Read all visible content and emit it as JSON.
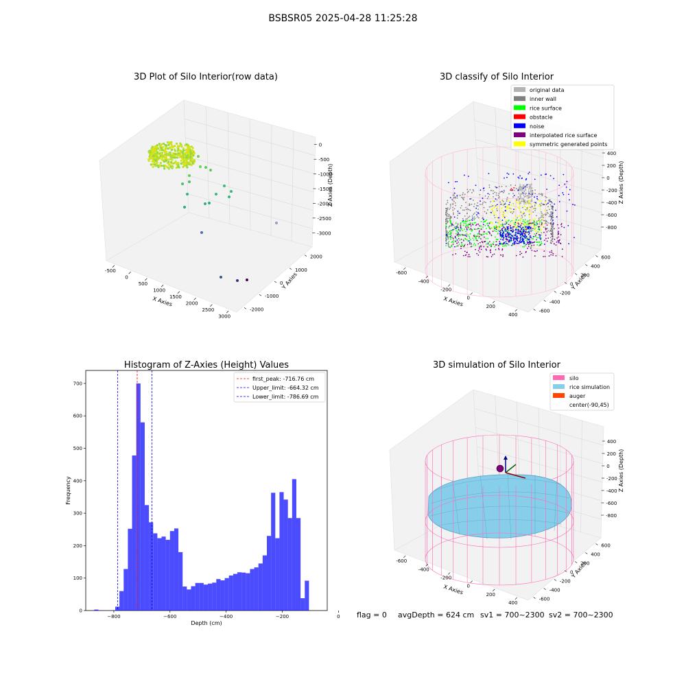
{
  "figure": {
    "suptitle": "BSBSR05 2025-04-28 11:25:28",
    "status": {
      "flag": "flag = 0",
      "avg_depth": "avgDepth = 624 cm",
      "sv1": "sv1 = 700~2300",
      "sv2": "sv2 = 700~2300"
    }
  },
  "chart_data": [
    {
      "id": "raw",
      "type": "scatter3d",
      "title": "3D Plot of Silo Interior(row data)",
      "xlabel": "X Axies",
      "ylabel": "Y Axies",
      "zlabel": "Z Axies (Depth)",
      "x_ticks": [
        "-500",
        "0",
        "500",
        "1000",
        "1500",
        "2000",
        "2500",
        "3000"
      ],
      "y_ticks": [
        "-2000",
        "-1000",
        "0",
        "1000",
        "2000"
      ],
      "z_ticks": [
        "0",
        "-500",
        "-1000",
        "-1500",
        "-2000",
        "-2500",
        "-3000"
      ],
      "colormap": "viridis"
    },
    {
      "id": "classify",
      "type": "scatter3d",
      "title": "3D classify of Silo Interior",
      "xlabel": "X Axies",
      "ylabel": "Y Axies",
      "zlabel": "Z Axies (Depth)",
      "x_ticks": [
        "-600",
        "-400",
        "-200",
        "0",
        "200",
        "400"
      ],
      "y_ticks": [
        "-600",
        "-400",
        "-200",
        "0",
        "200",
        "400",
        "600"
      ],
      "z_ticks": [
        "400",
        "200",
        "0",
        "-200",
        "-400",
        "-600",
        "-800"
      ],
      "legend": [
        {
          "label": "original data",
          "color": "#b3b3b3"
        },
        {
          "label": "inner wall",
          "color": "#808080"
        },
        {
          "label": "rice surface",
          "color": "#00ff00"
        },
        {
          "label": "obstacle",
          "color": "#ff0000"
        },
        {
          "label": "noise",
          "color": "#0000ff"
        },
        {
          "label": "interpolated rice surface",
          "color": "#800080"
        },
        {
          "label": "symmetric generated points",
          "color": "#ffff00"
        }
      ]
    },
    {
      "id": "hist",
      "type": "bar",
      "title": "Histogram of Z-Axies (Height) Values",
      "xlabel": "Depth (cm)",
      "ylabel": "Frequency",
      "xlim": [
        -900,
        -40
      ],
      "ylim": [
        0,
        740
      ],
      "x_ticks": [
        -800,
        -600,
        -400,
        -200,
        0
      ],
      "y_ticks": [
        0,
        100,
        200,
        300,
        400,
        500,
        600,
        700
      ],
      "bar_color": "#0000ff",
      "bins": [
        [
          -870,
          -855,
          3
        ],
        [
          -855,
          -840,
          1
        ],
        [
          -840,
          -825,
          0
        ],
        [
          -825,
          -810,
          0
        ],
        [
          -810,
          -795,
          1
        ],
        [
          -795,
          -780,
          12
        ],
        [
          -780,
          -765,
          60
        ],
        [
          -765,
          -750,
          128
        ],
        [
          -750,
          -735,
          252
        ],
        [
          -735,
          -720,
          478
        ],
        [
          -720,
          -705,
          700
        ],
        [
          -705,
          -690,
          580
        ],
        [
          -690,
          -675,
          325
        ],
        [
          -675,
          -660,
          272
        ],
        [
          -660,
          -645,
          238
        ],
        [
          -645,
          -630,
          223
        ],
        [
          -630,
          -615,
          228
        ],
        [
          -615,
          -600,
          218
        ],
        [
          -600,
          -585,
          245
        ],
        [
          -585,
          -570,
          253
        ],
        [
          -570,
          -555,
          180
        ],
        [
          -555,
          -540,
          74
        ],
        [
          -540,
          -525,
          65
        ],
        [
          -525,
          -510,
          75
        ],
        [
          -510,
          -495,
          85
        ],
        [
          -495,
          -480,
          85
        ],
        [
          -480,
          -465,
          80
        ],
        [
          -465,
          -450,
          83
        ],
        [
          -450,
          -435,
          86
        ],
        [
          -435,
          -420,
          97
        ],
        [
          -420,
          -405,
          93
        ],
        [
          -405,
          -390,
          100
        ],
        [
          -390,
          -375,
          108
        ],
        [
          -375,
          -360,
          113
        ],
        [
          -360,
          -345,
          118
        ],
        [
          -345,
          -330,
          117
        ],
        [
          -330,
          -315,
          115
        ],
        [
          -315,
          -300,
          128
        ],
        [
          -300,
          -285,
          133
        ],
        [
          -285,
          -270,
          145
        ],
        [
          -270,
          -255,
          170
        ],
        [
          -255,
          -240,
          230
        ],
        [
          -240,
          -225,
          363
        ],
        [
          -225,
          -210,
          223
        ],
        [
          -210,
          -195,
          365
        ],
        [
          -195,
          -180,
          342
        ],
        [
          -180,
          -165,
          285
        ],
        [
          -165,
          -150,
          405
        ],
        [
          -150,
          -135,
          285
        ],
        [
          -135,
          -120,
          38
        ],
        [
          -120,
          -105,
          92
        ]
      ],
      "lines": [
        {
          "label": "first_peak: -716.76 cm",
          "x": -716.76,
          "color": "#ff0000"
        },
        {
          "label": "Upper_limit: -664.32 cm",
          "x": -664.32,
          "color": "#0000ff"
        },
        {
          "label": "Lower_limit: -786.69 cm",
          "x": -786.69,
          "color": "#0000ff"
        }
      ]
    },
    {
      "id": "sim",
      "type": "surface3d",
      "title": "3D simulation of Silo Interior",
      "xlabel": "X Axies",
      "ylabel": "Y Axies",
      "zlabel": "Z Axies (Depth)",
      "x_ticks": [
        "-600",
        "-400",
        "-200",
        "0",
        "200",
        "400"
      ],
      "y_ticks": [
        "-600",
        "-400",
        "-200",
        "0",
        "200",
        "400",
        "600"
      ],
      "z_ticks": [
        "400",
        "200",
        "0",
        "-200",
        "-400",
        "-600",
        "-800"
      ],
      "legend": [
        {
          "label": "silo",
          "color": "#ff69b4"
        },
        {
          "label": "rice simulation",
          "color": "#87ceeb"
        },
        {
          "label": "auger",
          "color": "#ff4500"
        },
        {
          "label": "center(-90,45)",
          "color": ""
        }
      ]
    }
  ]
}
